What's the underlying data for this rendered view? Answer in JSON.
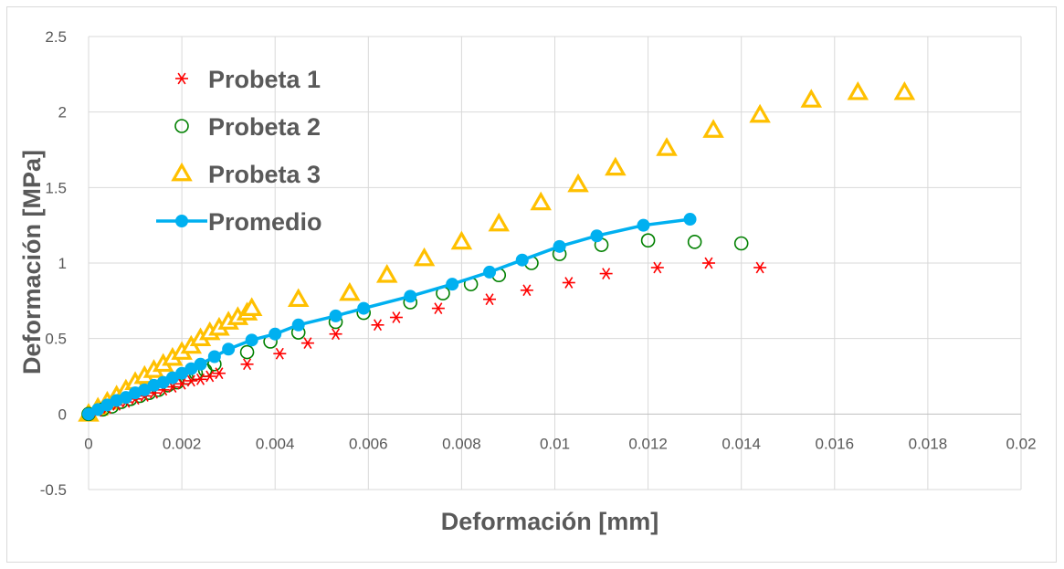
{
  "chart_data": {
    "type": "scatter",
    "xlabel": "Deformación [mm]",
    "ylabel": "Deformación [MPa]",
    "xlim": [
      0,
      0.02
    ],
    "ylim": [
      -0.5,
      2.5
    ],
    "xticks": [
      "0",
      "0.002",
      "0.004",
      "0.006",
      "0.008",
      "0.01",
      "0.012",
      "0.014",
      "0.016",
      "0.018",
      "0.02"
    ],
    "yticks": [
      "-0.5",
      "0",
      "0.5",
      "1",
      "1.5",
      "2",
      "2.5"
    ],
    "grid": "both",
    "legend_position": "top-left",
    "series": [
      {
        "name": "Probeta 1",
        "marker": "asterisk",
        "color": "#ff0000",
        "points": [
          [
            0,
            0
          ],
          [
            0.0002,
            0.02
          ],
          [
            0.0004,
            0.04
          ],
          [
            0.0006,
            0.06
          ],
          [
            0.0008,
            0.08
          ],
          [
            0.001,
            0.1
          ],
          [
            0.0012,
            0.12
          ],
          [
            0.0014,
            0.14
          ],
          [
            0.0016,
            0.16
          ],
          [
            0.0018,
            0.18
          ],
          [
            0.002,
            0.2
          ],
          [
            0.0022,
            0.22
          ],
          [
            0.0024,
            0.23
          ],
          [
            0.0026,
            0.25
          ],
          [
            0.0028,
            0.27
          ],
          [
            0.0034,
            0.33
          ],
          [
            0.0041,
            0.4
          ],
          [
            0.0047,
            0.47
          ],
          [
            0.0053,
            0.53
          ],
          [
            0.0062,
            0.59
          ],
          [
            0.0066,
            0.64
          ],
          [
            0.0075,
            0.7
          ],
          [
            0.0086,
            0.76
          ],
          [
            0.0094,
            0.82
          ],
          [
            0.0103,
            0.87
          ],
          [
            0.0111,
            0.93
          ],
          [
            0.0122,
            0.97
          ],
          [
            0.0133,
            1.0
          ],
          [
            0.0144,
            0.97
          ]
        ]
      },
      {
        "name": "Probeta 2",
        "marker": "circle-open",
        "color": "#008000",
        "points": [
          [
            0,
            0
          ],
          [
            0.0003,
            0.03
          ],
          [
            0.0005,
            0.05
          ],
          [
            0.0007,
            0.08
          ],
          [
            0.0009,
            0.1
          ],
          [
            0.0011,
            0.12
          ],
          [
            0.0013,
            0.14
          ],
          [
            0.0015,
            0.16
          ],
          [
            0.0017,
            0.19
          ],
          [
            0.0019,
            0.21
          ],
          [
            0.0021,
            0.24
          ],
          [
            0.0023,
            0.27
          ],
          [
            0.0025,
            0.29
          ],
          [
            0.0027,
            0.33
          ],
          [
            0.0034,
            0.41
          ],
          [
            0.0039,
            0.48
          ],
          [
            0.0045,
            0.54
          ],
          [
            0.0053,
            0.61
          ],
          [
            0.0059,
            0.67
          ],
          [
            0.0069,
            0.74
          ],
          [
            0.0076,
            0.8
          ],
          [
            0.0082,
            0.86
          ],
          [
            0.0088,
            0.92
          ],
          [
            0.0095,
            1.0
          ],
          [
            0.0101,
            1.06
          ],
          [
            0.011,
            1.12
          ],
          [
            0.012,
            1.15
          ],
          [
            0.013,
            1.14
          ],
          [
            0.014,
            1.13
          ]
        ]
      },
      {
        "name": "Probeta 3",
        "marker": "triangle-open",
        "color": "#ffc000",
        "points": [
          [
            0,
            0
          ],
          [
            0.0002,
            0.04
          ],
          [
            0.0004,
            0.08
          ],
          [
            0.0006,
            0.12
          ],
          [
            0.0008,
            0.16
          ],
          [
            0.001,
            0.21
          ],
          [
            0.0012,
            0.25
          ],
          [
            0.0014,
            0.29
          ],
          [
            0.0016,
            0.33
          ],
          [
            0.0018,
            0.37
          ],
          [
            0.002,
            0.41
          ],
          [
            0.0022,
            0.45
          ],
          [
            0.0024,
            0.5
          ],
          [
            0.0026,
            0.54
          ],
          [
            0.0028,
            0.57
          ],
          [
            0.003,
            0.61
          ],
          [
            0.0032,
            0.64
          ],
          [
            0.0034,
            0.67
          ],
          [
            0.0035,
            0.7
          ],
          [
            0.0045,
            0.76
          ],
          [
            0.0056,
            0.8
          ],
          [
            0.0064,
            0.92
          ],
          [
            0.0072,
            1.03
          ],
          [
            0.008,
            1.14
          ],
          [
            0.0088,
            1.26
          ],
          [
            0.0097,
            1.4
          ],
          [
            0.0105,
            1.52
          ],
          [
            0.0113,
            1.63
          ],
          [
            0.0124,
            1.76
          ],
          [
            0.0134,
            1.88
          ],
          [
            0.0144,
            1.98
          ],
          [
            0.0155,
            2.08
          ],
          [
            0.0165,
            2.13
          ],
          [
            0.0175,
            2.13
          ]
        ]
      },
      {
        "name": "Promedio",
        "marker": "circle-filled-line",
        "color": "#00b0f0",
        "points": [
          [
            0,
            0
          ],
          [
            0.0002,
            0.03
          ],
          [
            0.0004,
            0.06
          ],
          [
            0.0006,
            0.09
          ],
          [
            0.0008,
            0.11
          ],
          [
            0.001,
            0.14
          ],
          [
            0.0012,
            0.16
          ],
          [
            0.0014,
            0.19
          ],
          [
            0.0016,
            0.21
          ],
          [
            0.0018,
            0.24
          ],
          [
            0.002,
            0.27
          ],
          [
            0.0022,
            0.3
          ],
          [
            0.0024,
            0.33
          ],
          [
            0.0027,
            0.38
          ],
          [
            0.003,
            0.43
          ],
          [
            0.0035,
            0.49
          ],
          [
            0.004,
            0.53
          ],
          [
            0.0045,
            0.59
          ],
          [
            0.0053,
            0.65
          ],
          [
            0.0059,
            0.7
          ],
          [
            0.0069,
            0.78
          ],
          [
            0.0078,
            0.86
          ],
          [
            0.0086,
            0.94
          ],
          [
            0.0093,
            1.02
          ],
          [
            0.0101,
            1.11
          ],
          [
            0.0109,
            1.18
          ],
          [
            0.0119,
            1.25
          ],
          [
            0.0129,
            1.29
          ]
        ]
      }
    ]
  }
}
